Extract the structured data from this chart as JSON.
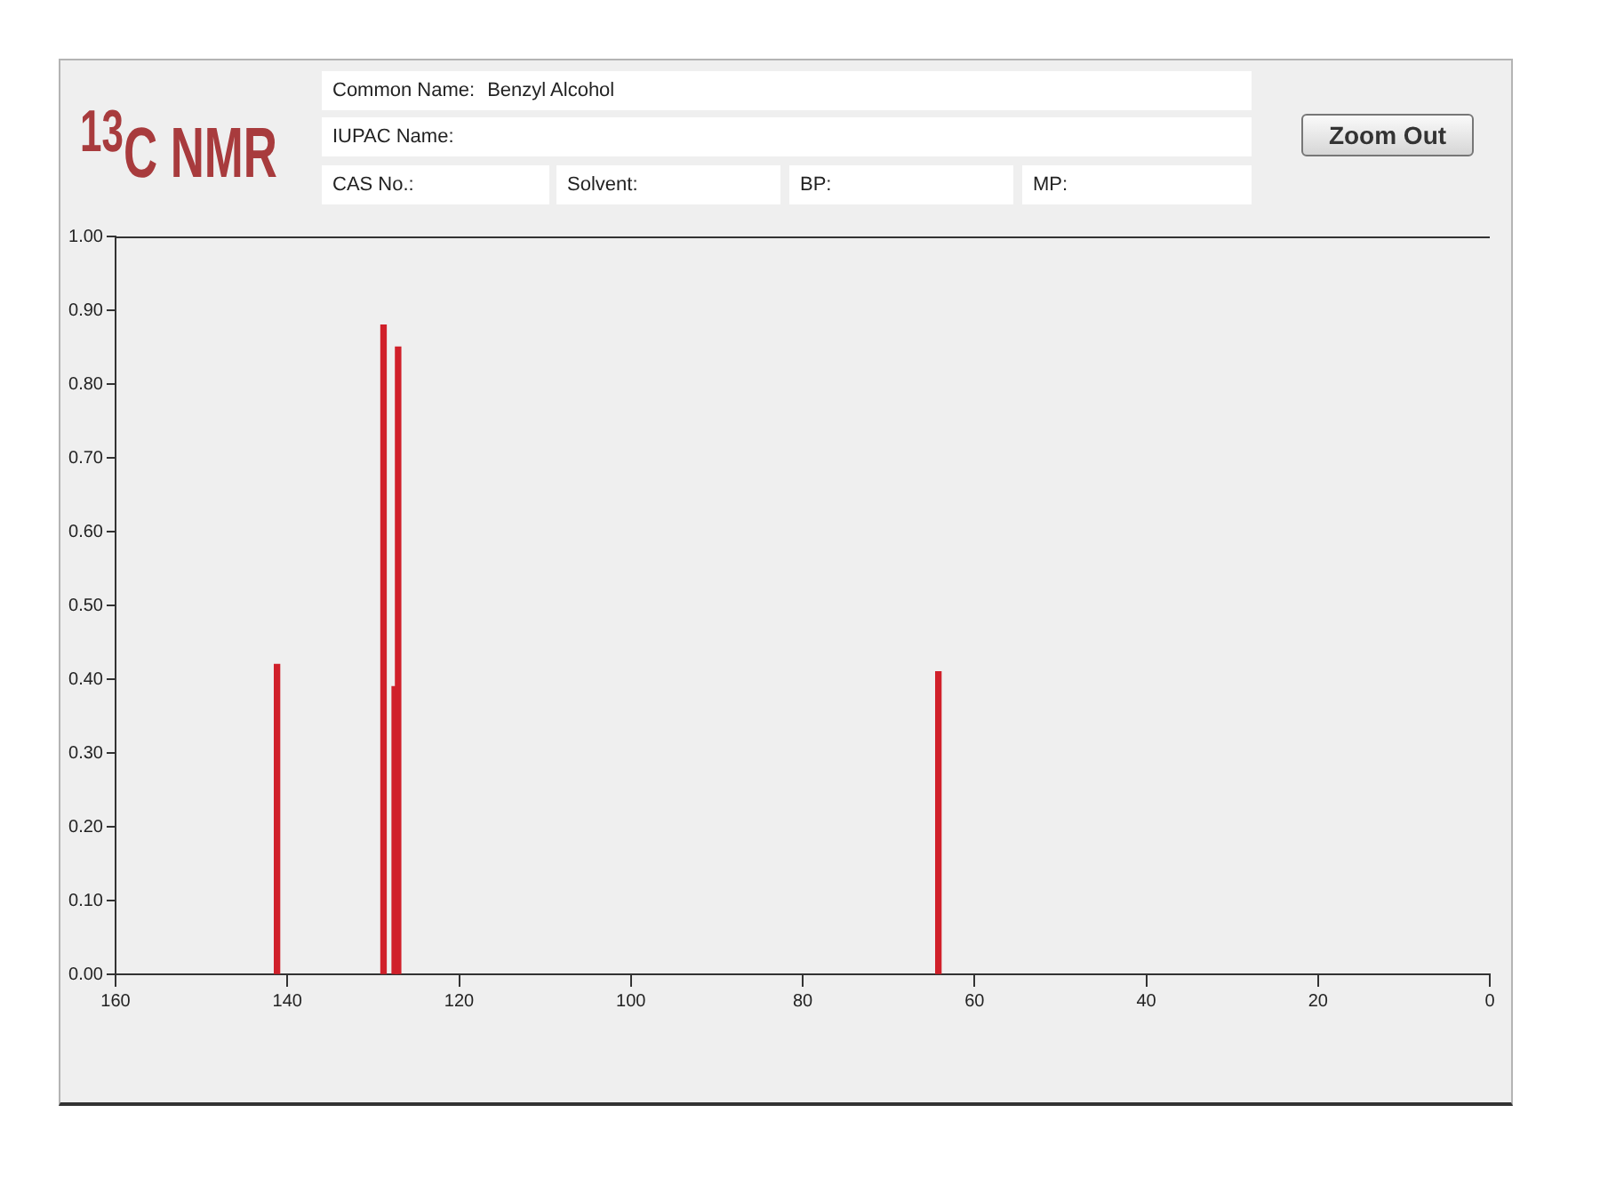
{
  "chart_data": {
    "type": "bar",
    "title": "$^{13}$C NMR",
    "annotations": [
      "Common Name:",
      "Benzyl Alcohol",
      "IUPAC Name:",
      "CAS No.:",
      "Solvent:",
      "BP:",
      "MP:",
      "Zoom Out"
    ],
    "x": [
      141.2,
      128.8,
      127.5,
      127.1,
      64.2
    ],
    "values": [
      0.42,
      0.88,
      0.39,
      0.85,
      0.41
    ],
    "color": "#d0202a",
    "xlim": [
      160,
      0
    ],
    "xticks": [
      160,
      140,
      120,
      100,
      80,
      60,
      40,
      20,
      0
    ],
    "ylim": [
      0,
      1
    ],
    "yticks": [
      {
        "value": 0,
        "label": "0.00"
      },
      {
        "value": 0.1,
        "label": "0.10"
      },
      {
        "value": 0.2,
        "label": "0.20"
      },
      {
        "value": 0.3,
        "label": "0.30"
      },
      {
        "value": 0.4,
        "label": "0.40"
      },
      {
        "value": 0.5,
        "label": "0.50"
      },
      {
        "value": 0.6,
        "label": "0.60"
      },
      {
        "value": 0.7,
        "label": "0.70"
      },
      {
        "value": 0.8,
        "label": "0.80"
      },
      {
        "value": 0.9,
        "label": "0.90"
      },
      {
        "value": 1,
        "label": "1.00"
      }
    ]
  }
}
